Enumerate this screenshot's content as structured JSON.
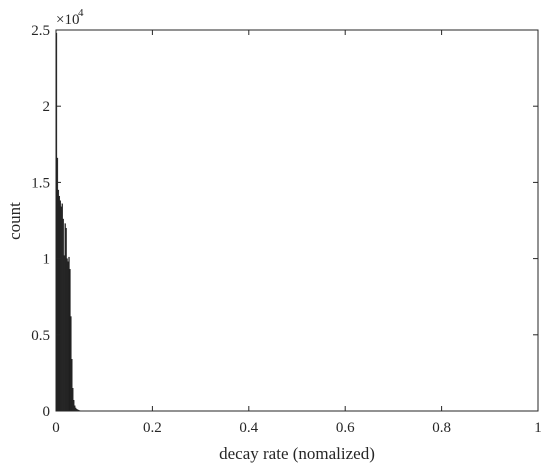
{
  "chart_data": {
    "type": "bar",
    "title": "",
    "xlabel": "decay rate (nomalized)",
    "ylabel": "count",
    "y_exponent_label": "×10",
    "y_exponent": "4",
    "xlim": [
      0,
      1
    ],
    "ylim": [
      0,
      25000
    ],
    "x_ticks": [
      0,
      0.2,
      0.4,
      0.6,
      0.8,
      1
    ],
    "x_tick_labels": [
      "0",
      "0.2",
      "0.4",
      "0.6",
      "0.8",
      "1"
    ],
    "y_ticks": [
      0,
      5000,
      10000,
      15000,
      20000,
      25000
    ],
    "y_tick_labels": [
      "0",
      "0.5",
      "1",
      "1.5",
      "2",
      "2.5"
    ],
    "grid": false,
    "box": true,
    "bar_color": "#2b2b2b",
    "bins": {
      "x": [
        0.001,
        0.003,
        0.005,
        0.007,
        0.009,
        0.011,
        0.013,
        0.015,
        0.017,
        0.019,
        0.021,
        0.023,
        0.025,
        0.027,
        0.029,
        0.031,
        0.033,
        0.035,
        0.037,
        0.039,
        0.041,
        0.043,
        0.045,
        0.047,
        0.049,
        0.051,
        0.053
      ],
      "values": [
        24800,
        16600,
        14500,
        14100,
        13800,
        13400,
        13600,
        12600,
        10200,
        12300,
        12000,
        10000,
        9800,
        10100,
        9300,
        6200,
        3400,
        1500,
        700,
        350,
        200,
        120,
        80,
        50,
        30,
        20,
        10
      ]
    }
  }
}
